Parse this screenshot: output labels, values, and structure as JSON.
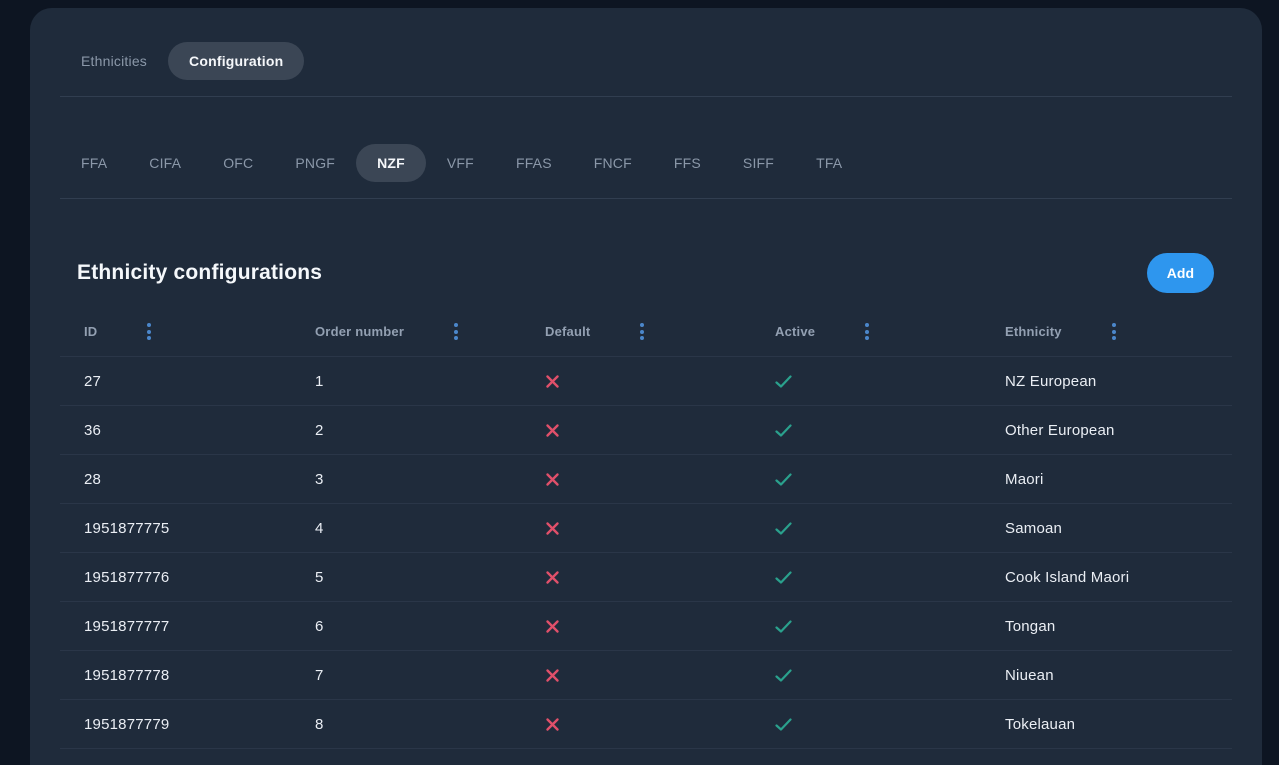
{
  "colors": {
    "page_bg": "#0d1522",
    "card_bg": "#1f2b3b",
    "active_pill_bg": "#3b4655",
    "accent_blue": "#2e96ee",
    "column_menu_blue": "#4b87cb",
    "cross_red": "#e0506a",
    "check_teal": "#2aa18d"
  },
  "icons": {
    "column_menu": "vertical-dots-icon",
    "default_false": "cross-icon",
    "active_true": "check-icon"
  },
  "view_tabs": [
    {
      "label": "Ethnicities",
      "active": false
    },
    {
      "label": "Configuration",
      "active": true
    }
  ],
  "federation_tabs": [
    {
      "label": "FFA",
      "active": false
    },
    {
      "label": "CIFA",
      "active": false
    },
    {
      "label": "OFC",
      "active": false
    },
    {
      "label": "PNGF",
      "active": false
    },
    {
      "label": "NZF",
      "active": true
    },
    {
      "label": "VFF",
      "active": false
    },
    {
      "label": "FFAS",
      "active": false
    },
    {
      "label": "FNCF",
      "active": false
    },
    {
      "label": "FFS",
      "active": false
    },
    {
      "label": "SIFF",
      "active": false
    },
    {
      "label": "TFA",
      "active": false
    }
  ],
  "section": {
    "title": "Ethnicity configurations",
    "add_button_label": "Add"
  },
  "table": {
    "columns": [
      "ID",
      "Order number",
      "Default",
      "Active",
      "Ethnicity"
    ],
    "rows": [
      {
        "id": "27",
        "order": "1",
        "default": false,
        "active": true,
        "ethnicity": "NZ European"
      },
      {
        "id": "36",
        "order": "2",
        "default": false,
        "active": true,
        "ethnicity": "Other European"
      },
      {
        "id": "28",
        "order": "3",
        "default": false,
        "active": true,
        "ethnicity": "Maori"
      },
      {
        "id": "1951877775",
        "order": "4",
        "default": false,
        "active": true,
        "ethnicity": "Samoan"
      },
      {
        "id": "1951877776",
        "order": "5",
        "default": false,
        "active": true,
        "ethnicity": "Cook Island Maori"
      },
      {
        "id": "1951877777",
        "order": "6",
        "default": false,
        "active": true,
        "ethnicity": "Tongan"
      },
      {
        "id": "1951877778",
        "order": "7",
        "default": false,
        "active": true,
        "ethnicity": "Niuean"
      },
      {
        "id": "1951877779",
        "order": "8",
        "default": false,
        "active": true,
        "ethnicity": "Tokelauan"
      },
      {
        "id": "",
        "order": "",
        "default": false,
        "active": true,
        "ethnicity": "",
        "partial": true
      }
    ]
  }
}
